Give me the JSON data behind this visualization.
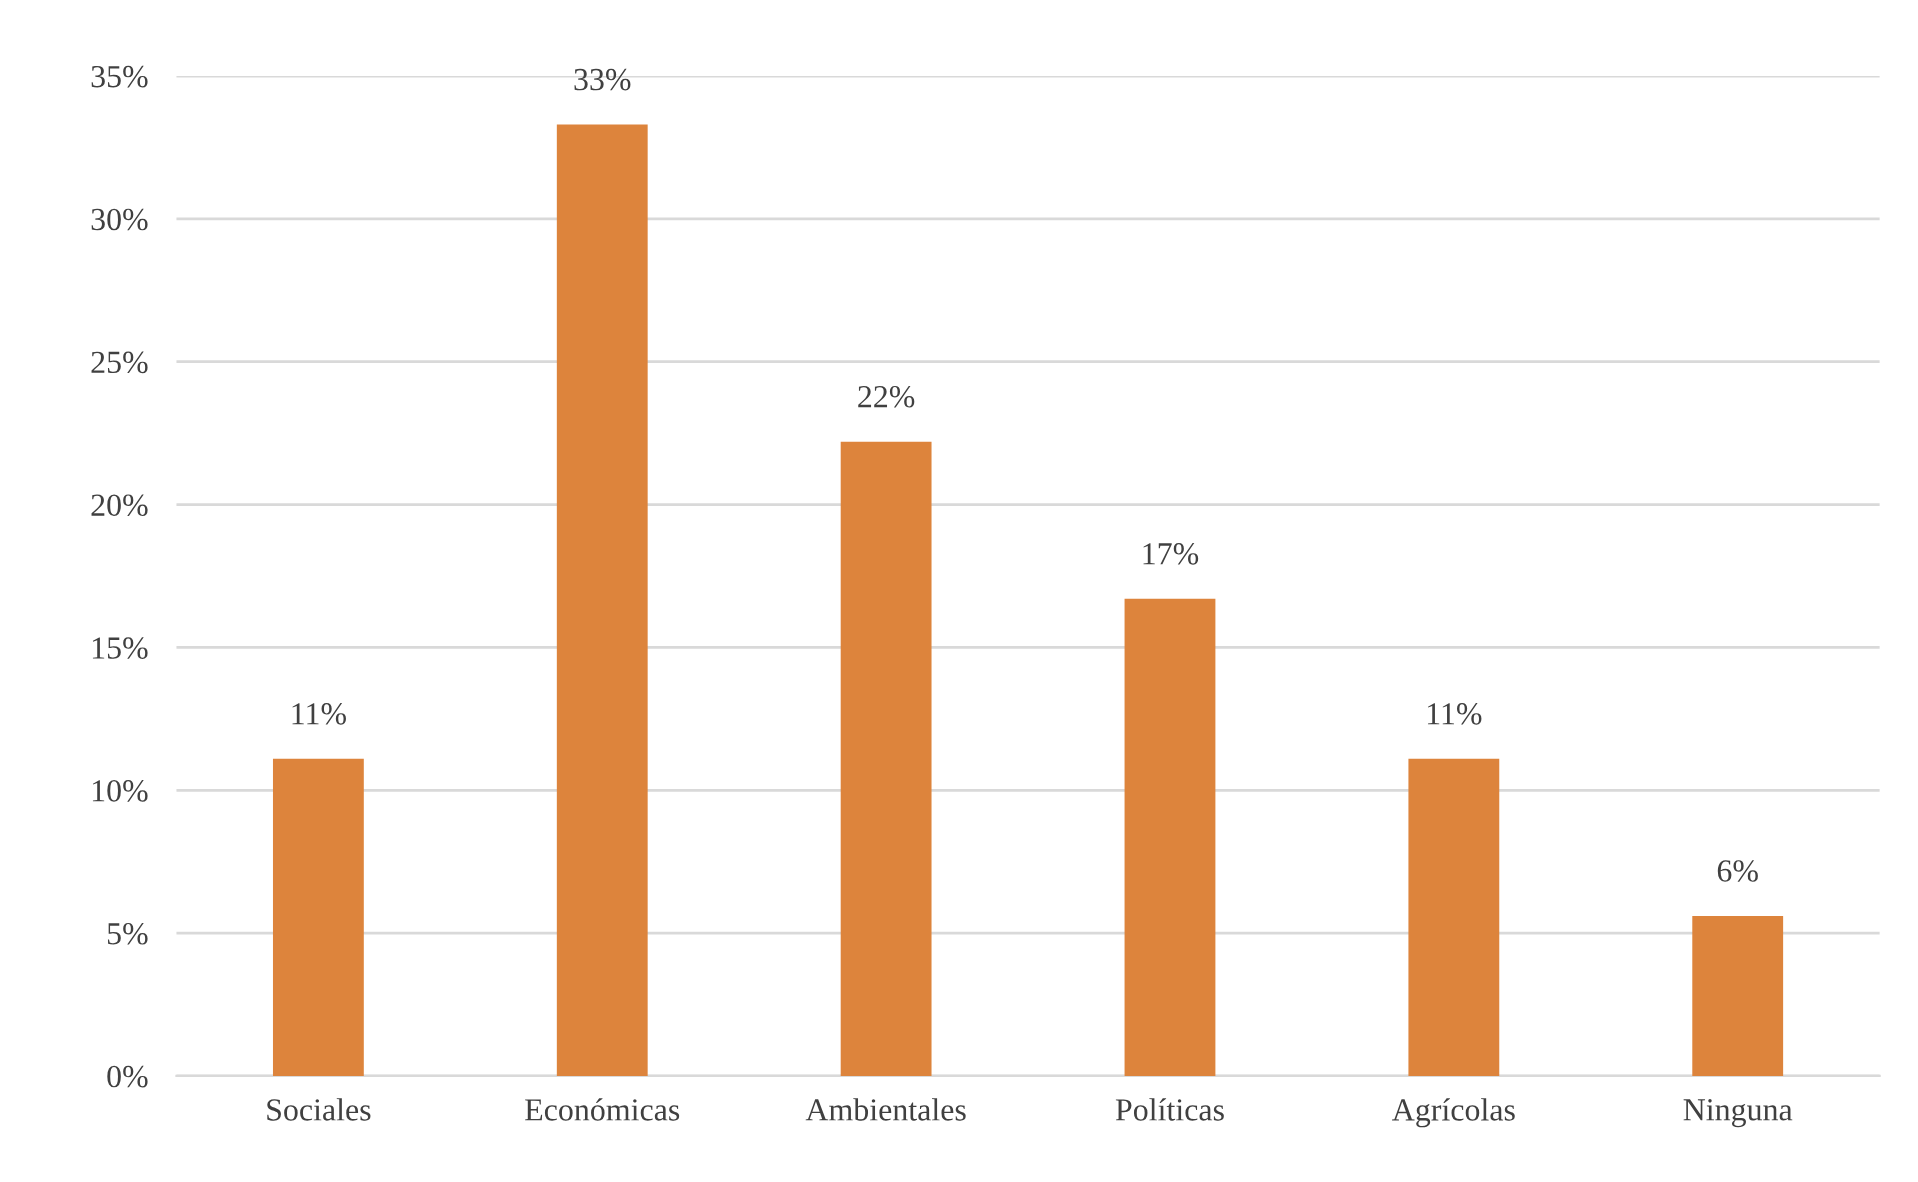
{
  "chart_data": {
    "type": "bar",
    "categories": [
      "Sociales",
      "Económicas",
      "Ambientales",
      "Políticas",
      "Agrícolas",
      "Ninguna"
    ],
    "values": [
      11.1,
      33.3,
      22.2,
      16.7,
      11.1,
      5.6
    ],
    "value_labels": [
      "11%",
      "33%",
      "22%",
      "17%",
      "11%",
      "6%"
    ],
    "color": "#dd843c",
    "ylim": [
      0,
      35
    ],
    "yticks": [
      {
        "value": 0,
        "label": "0%"
      },
      {
        "value": 5,
        "label": "5%"
      },
      {
        "value": 10,
        "label": "10%"
      },
      {
        "value": 15,
        "label": "15%"
      },
      {
        "value": 20,
        "label": "20%"
      },
      {
        "value": 25,
        "label": "25%"
      },
      {
        "value": 30,
        "label": "30%"
      },
      {
        "value": 35,
        "label": "35%"
      }
    ],
    "grid": "y"
  }
}
